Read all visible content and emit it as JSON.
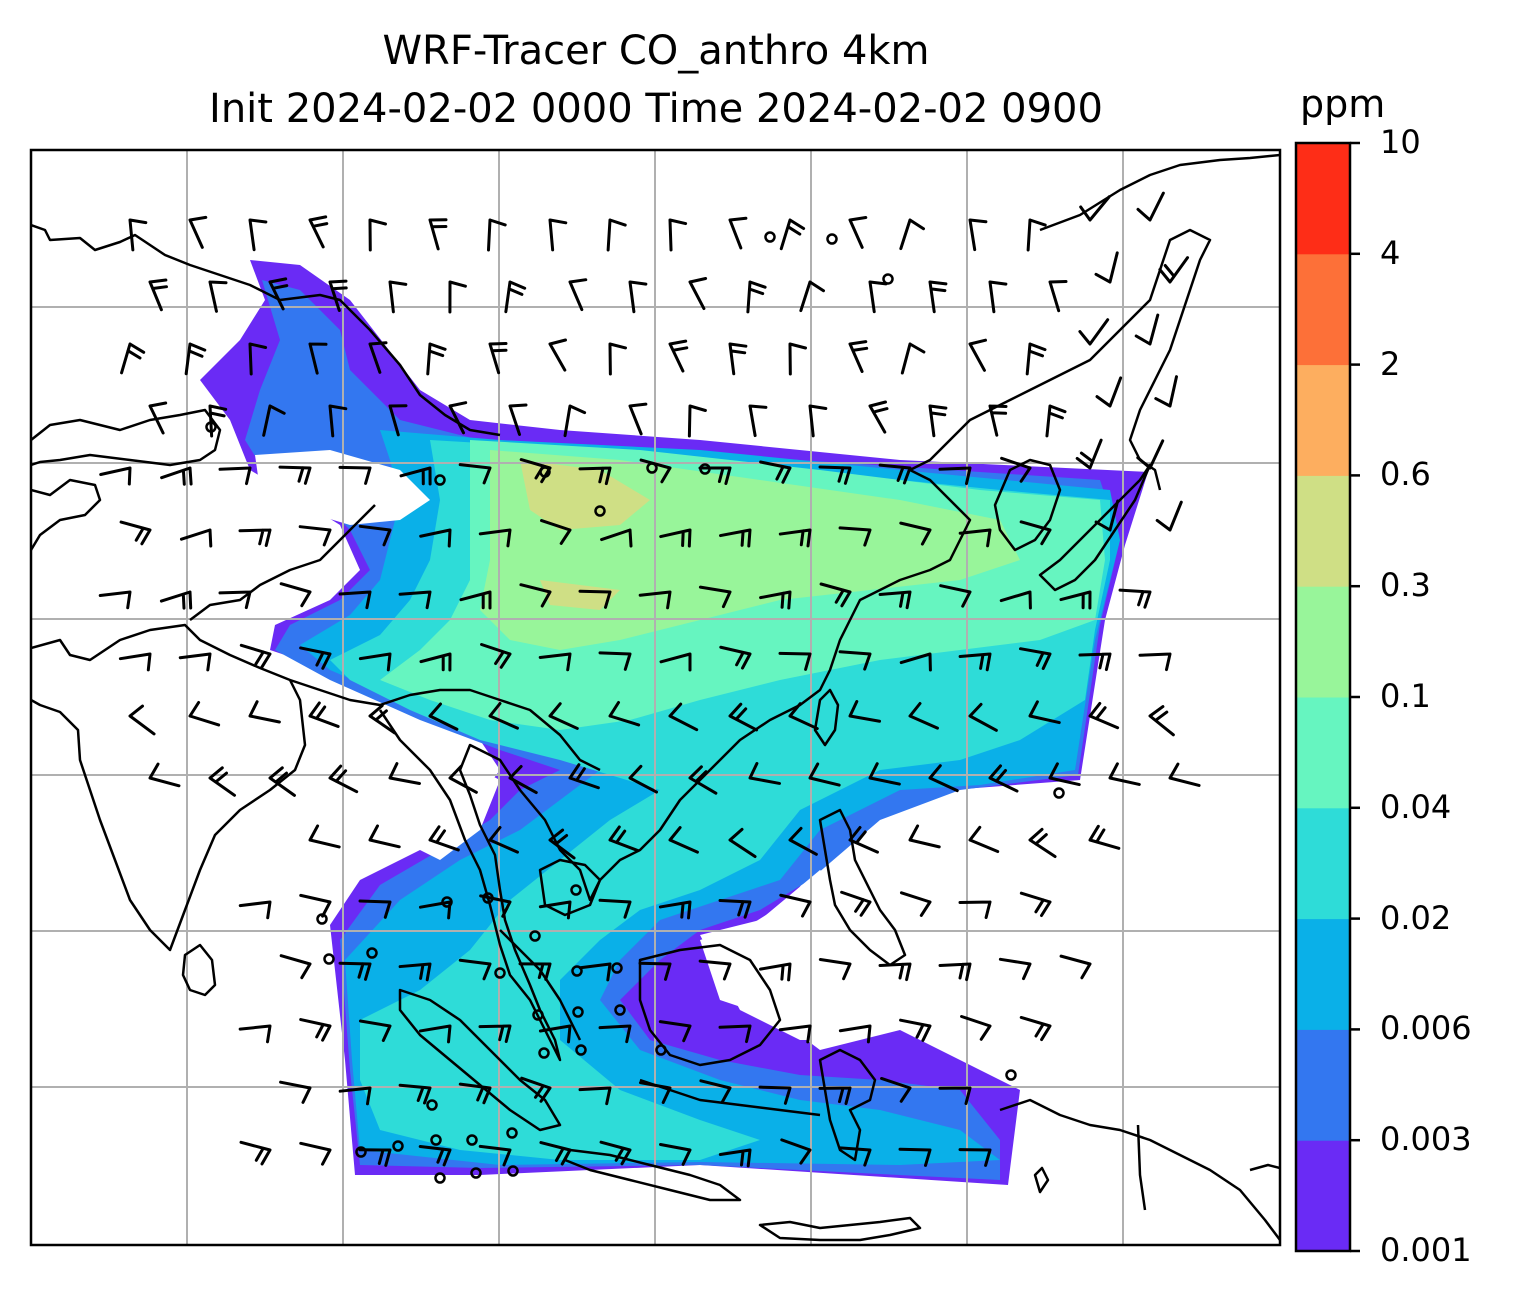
{
  "title": {
    "line1": "WRF-Tracer CO_anthro 4km",
    "line2": "Init 2024-02-02 0000 Time 2024-02-02 0900"
  },
  "colorbar": {
    "unit": "ppm",
    "levels": [
      "0.001",
      "0.003",
      "0.006",
      "0.02",
      "0.04",
      "0.1",
      "0.3",
      "0.6",
      "2",
      "4",
      "10"
    ],
    "colors": [
      "#6a2bf5",
      "#3377f0",
      "#0ab0e8",
      "#2edcd8",
      "#66f5c0",
      "#98f59a",
      "#cfdf85",
      "#fdae5f",
      "#fd7038",
      "#fe2d17"
    ]
  },
  "map": {
    "gridlines": true,
    "coastline_color": "#000000",
    "grid_color": "#b0b0b0",
    "wind_barbs": true,
    "calm_circles": true
  }
}
